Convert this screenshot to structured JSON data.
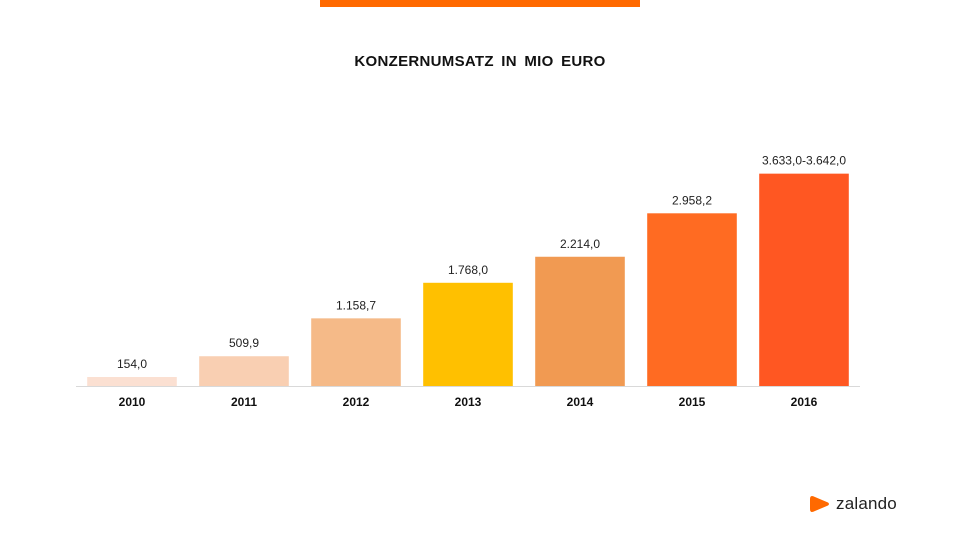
{
  "title": "KONZERNUMSATZ  IN MIO  EURO",
  "brand": {
    "name": "zalando",
    "logo_icon": "zalando-play-mark-icon",
    "accent": "#FF6900"
  },
  "top_bar_color": "#FF6900",
  "chart_data": {
    "type": "bar",
    "title": "KONZERNUMSATZ  IN MIO  EURO",
    "xlabel": "",
    "ylabel": "",
    "categories": [
      "2010",
      "2011",
      "2012",
      "2013",
      "2014",
      "2015",
      "2016"
    ],
    "values": [
      154.0,
      509.9,
      1158.7,
      1768.0,
      2214.0,
      2958.2,
      3637.5
    ],
    "value_labels": [
      "154,0",
      "509,9",
      "1.158,7",
      "1.768,0",
      "2.214,0",
      "2.958,2",
      "3.633,0-3.642,0"
    ],
    "colors": [
      "#FBE0D2",
      "#F9CFB2",
      "#F5BA88",
      "#FFC000",
      "#F19A52",
      "#FF6B22",
      "#FF5722"
    ],
    "ylim": [
      0,
      3700
    ],
    "grid": false,
    "legend": "none"
  }
}
